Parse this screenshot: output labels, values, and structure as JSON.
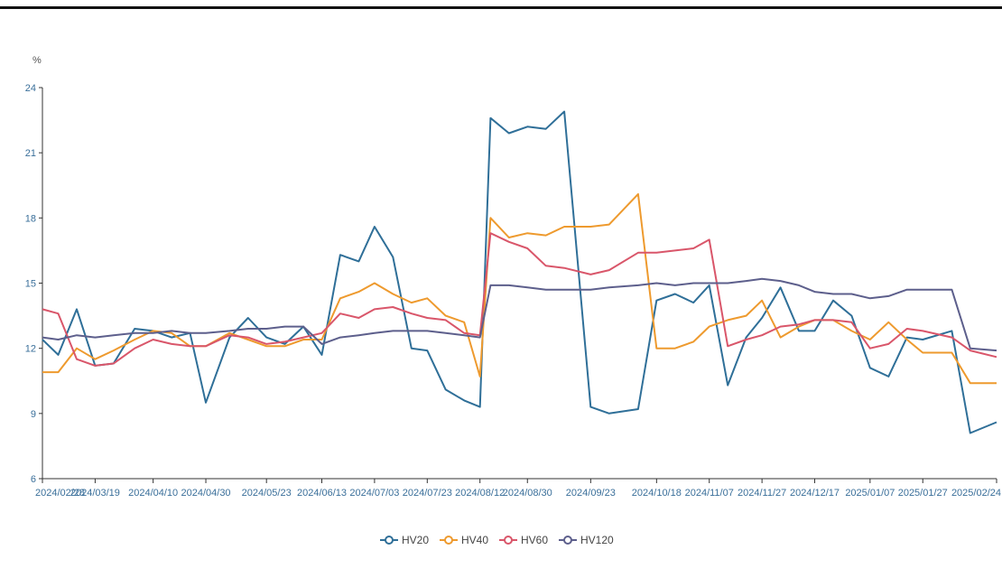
{
  "chart_data": {
    "type": "line",
    "title": "",
    "xlabel": "",
    "ylabel": "%",
    "ylim": [
      6,
      24
    ],
    "yticks": [
      "6",
      "9",
      "12",
      "15",
      "18",
      "21",
      "24"
    ],
    "x_tick_labels": [
      "2024/02/28",
      "2024/03/19",
      "2024/04/10",
      "2024/04/30",
      "2024/05/23",
      "2024/06/13",
      "2024/07/03",
      "2024/07/23",
      "2024/08/12",
      "2024/08/30",
      "2024/09/23",
      "2024/10/18",
      "2024/11/07",
      "2024/11/27",
      "2024/12/17",
      "2025/01/07",
      "2025/01/27",
      "2025/02/24"
    ],
    "grid": false,
    "legend_position": "bottom-center",
    "x": [
      "2024/02/28",
      "2024/03/05",
      "2024/03/12",
      "2024/03/19",
      "2024/03/26",
      "2024/04/03",
      "2024/04/10",
      "2024/04/17",
      "2024/04/24",
      "2024/04/30",
      "2024/05/09",
      "2024/05/16",
      "2024/05/23",
      "2024/05/30",
      "2024/06/06",
      "2024/06/13",
      "2024/06/20",
      "2024/06/27",
      "2024/07/03",
      "2024/07/10",
      "2024/07/17",
      "2024/07/23",
      "2024/07/30",
      "2024/08/06",
      "2024/08/12",
      "2024/08/16",
      "2024/08/23",
      "2024/08/30",
      "2024/09/06",
      "2024/09/13",
      "2024/09/23",
      "2024/09/30",
      "2024/10/11",
      "2024/10/18",
      "2024/10/25",
      "2024/11/01",
      "2024/11/07",
      "2024/11/14",
      "2024/11/21",
      "2024/11/27",
      "2024/12/04",
      "2024/12/11",
      "2024/12/17",
      "2024/12/24",
      "2024/12/31",
      "2025/01/07",
      "2025/01/14",
      "2025/01/21",
      "2025/01/27",
      "2025/02/07",
      "2025/02/14",
      "2025/02/24"
    ],
    "series": [
      {
        "name": "HV20",
        "color": "#2f6f98",
        "values": [
          12.4,
          11.7,
          13.8,
          11.2,
          11.3,
          12.9,
          12.8,
          12.5,
          12.7,
          9.5,
          12.5,
          13.4,
          12.5,
          12.2,
          13.0,
          11.7,
          16.3,
          16.0,
          17.6,
          16.2,
          12.0,
          11.9,
          10.1,
          9.6,
          9.3,
          22.6,
          21.9,
          22.2,
          22.1,
          22.9,
          9.3,
          9.0,
          9.2,
          14.2,
          14.5,
          14.1,
          14.9,
          10.3,
          12.5,
          13.4,
          14.8,
          12.8,
          12.8,
          14.2,
          13.5,
          11.1,
          10.7,
          12.5,
          12.4,
          12.8,
          8.1,
          8.6
        ]
      },
      {
        "name": "HV40",
        "color": "#ee9a2e",
        "values": [
          10.9,
          10.9,
          12.0,
          11.5,
          11.9,
          12.4,
          12.8,
          12.7,
          12.1,
          12.1,
          12.7,
          12.4,
          12.1,
          12.1,
          12.4,
          12.4,
          14.3,
          14.6,
          15.0,
          14.5,
          14.1,
          14.3,
          13.5,
          13.2,
          10.7,
          18.0,
          17.1,
          17.3,
          17.2,
          17.6,
          17.6,
          17.7,
          19.1,
          12.0,
          12.0,
          12.3,
          13.0,
          13.3,
          13.5,
          14.2,
          12.5,
          13.0,
          13.3,
          13.3,
          12.8,
          12.4,
          13.2,
          12.4,
          11.8,
          11.8,
          10.4,
          10.4
        ]
      },
      {
        "name": "HV60",
        "color": "#d9566a",
        "values": [
          13.8,
          13.6,
          11.5,
          11.2,
          11.3,
          12.0,
          12.4,
          12.2,
          12.1,
          12.1,
          12.6,
          12.5,
          12.2,
          12.3,
          12.5,
          12.7,
          13.6,
          13.4,
          13.8,
          13.9,
          13.6,
          13.4,
          13.3,
          12.7,
          12.6,
          17.3,
          16.9,
          16.6,
          15.8,
          15.7,
          15.4,
          15.6,
          16.4,
          16.4,
          16.5,
          16.6,
          17.0,
          12.1,
          12.4,
          12.6,
          13.0,
          13.1,
          13.3,
          13.3,
          13.2,
          12.0,
          12.2,
          12.9,
          12.8,
          12.5,
          11.9,
          11.6
        ]
      },
      {
        "name": "HV120",
        "color": "#5d5f8c",
        "values": [
          12.5,
          12.4,
          12.6,
          12.5,
          12.6,
          12.7,
          12.7,
          12.8,
          12.7,
          12.7,
          12.8,
          12.9,
          12.9,
          13.0,
          13.0,
          12.2,
          12.5,
          12.6,
          12.7,
          12.8,
          12.8,
          12.8,
          12.7,
          12.6,
          12.5,
          14.9,
          14.9,
          14.8,
          14.7,
          14.7,
          14.7,
          14.8,
          14.9,
          15.0,
          14.9,
          15.0,
          15.0,
          15.0,
          15.1,
          15.2,
          15.1,
          14.9,
          14.6,
          14.5,
          14.5,
          14.3,
          14.4,
          14.7,
          14.7,
          14.7,
          12.0,
          11.9
        ]
      }
    ]
  }
}
